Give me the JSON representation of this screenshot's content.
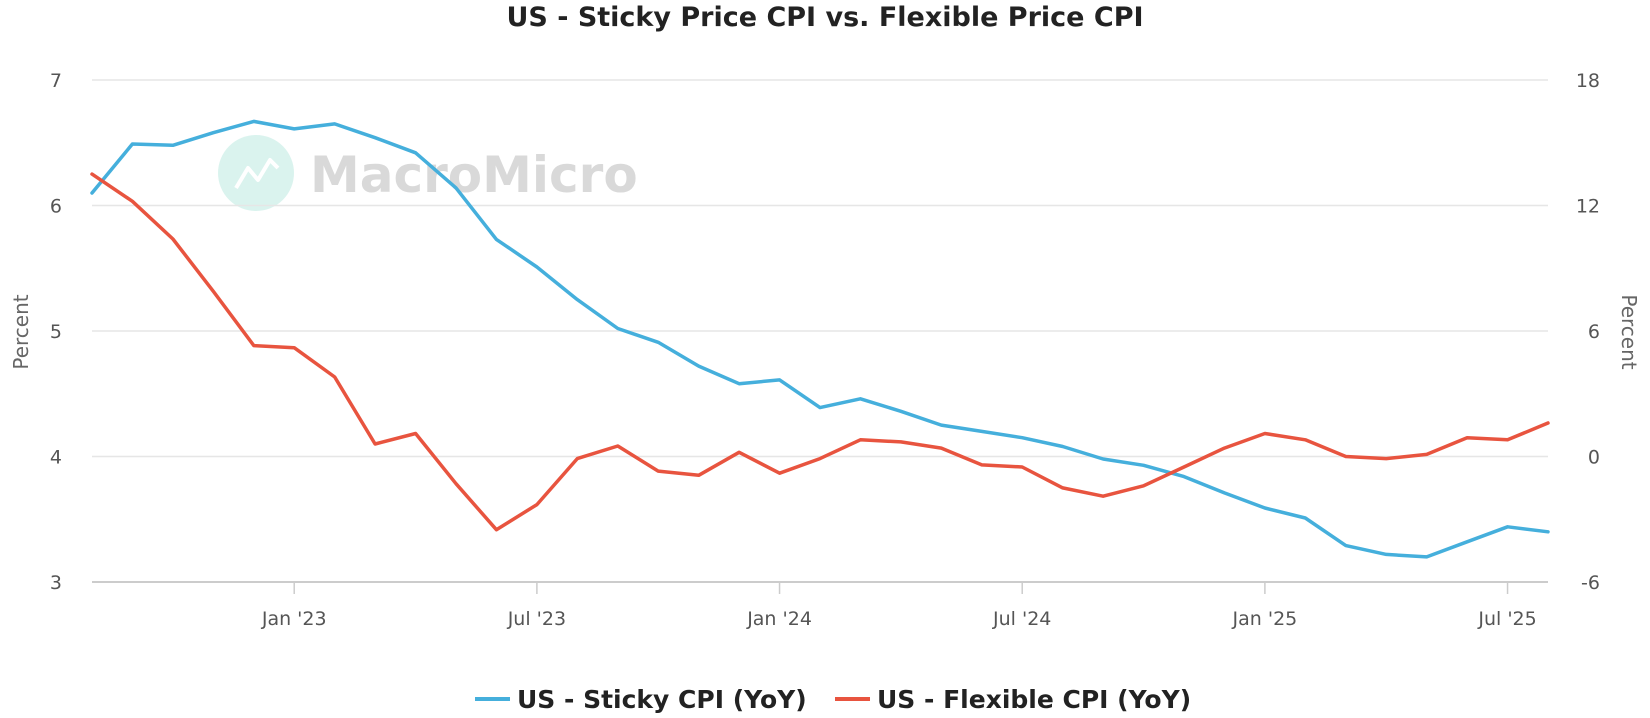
{
  "chart_data": {
    "type": "line",
    "title": "US - Sticky Price CPI vs. Flexible Price CPI",
    "watermark": "MacroMicro",
    "watermark_icon": "macromicro-logo-icon",
    "left_axis": {
      "label": "Percent",
      "range": [
        3,
        7
      ],
      "ticks": [
        3,
        4,
        5,
        6,
        7
      ]
    },
    "right_axis": {
      "label": "Percent",
      "range": [
        -6,
        18
      ],
      "ticks": [
        -6,
        0,
        6,
        12,
        18
      ]
    },
    "x_ticks": [
      {
        "label": "Jan '23",
        "index": 5
      },
      {
        "label": "Jul '23",
        "index": 11
      },
      {
        "label": "Jan '24",
        "index": 17
      },
      {
        "label": "Jul '24",
        "index": 23
      },
      {
        "label": "Jan '25",
        "index": 29
      },
      {
        "label": "Jul '25",
        "index": 35
      }
    ],
    "x": [
      "2022-08",
      "2022-09",
      "2022-10",
      "2022-11",
      "2022-12",
      "2023-01",
      "2023-02",
      "2023-03",
      "2023-04",
      "2023-05",
      "2023-06",
      "2023-07",
      "2023-08",
      "2023-09",
      "2023-10",
      "2023-11",
      "2023-12",
      "2024-01",
      "2024-02",
      "2024-03",
      "2024-04",
      "2024-05",
      "2024-06",
      "2024-07",
      "2024-08",
      "2024-09",
      "2024-10",
      "2024-11",
      "2024-12",
      "2025-01",
      "2025-02",
      "2025-03",
      "2025-04",
      "2025-05",
      "2025-06",
      "2025-07",
      "2025-08"
    ],
    "series": [
      {
        "name": "US - Sticky CPI (YoY)",
        "axis": "left",
        "color": "#45afdc",
        "values": [
          6.1,
          6.49,
          6.48,
          6.58,
          6.67,
          6.61,
          6.65,
          6.54,
          6.42,
          6.14,
          5.73,
          5.51,
          5.25,
          5.02,
          4.91,
          4.72,
          4.58,
          4.61,
          4.39,
          4.46,
          4.36,
          4.25,
          4.2,
          4.15,
          4.08,
          3.98,
          3.93,
          3.84,
          3.71,
          3.59,
          3.51,
          3.29,
          3.22,
          3.2,
          3.32,
          3.44,
          3.4
        ]
      },
      {
        "name": "US - Flexible CPI (YoY)",
        "axis": "right",
        "color": "#e8543f",
        "values": [
          13.5,
          12.2,
          10.4,
          7.9,
          5.3,
          5.2,
          3.8,
          0.6,
          1.1,
          -1.3,
          -3.5,
          -2.3,
          -0.1,
          0.5,
          -0.7,
          -0.9,
          0.2,
          -0.8,
          -0.1,
          0.8,
          0.7,
          0.4,
          -0.4,
          -0.5,
          -1.5,
          -1.9,
          -1.4,
          -0.5,
          0.4,
          1.1,
          0.8,
          0.0,
          -0.1,
          0.1,
          0.9,
          0.8,
          1.6
        ]
      }
    ]
  }
}
